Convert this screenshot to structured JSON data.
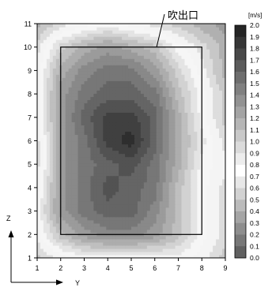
{
  "chart_data": {
    "type": "heatmap",
    "title": "",
    "xlabel": "Y",
    "ylabel": "Z",
    "xlim": [
      1,
      9
    ],
    "ylim": [
      1,
      11
    ],
    "x_ticks": [
      "1",
      "2",
      "3",
      "4",
      "5",
      "6",
      "7",
      "8",
      "9"
    ],
    "y_ticks": [
      "1",
      "2",
      "3",
      "4",
      "5",
      "6",
      "7",
      "8",
      "9",
      "10",
      "11"
    ],
    "x": [
      1,
      2,
      3,
      4,
      5,
      6,
      7,
      8,
      9
    ],
    "y": [
      1,
      2,
      3,
      4,
      5,
      6,
      7,
      8,
      9,
      10,
      11
    ],
    "z": [
      [
        0.5,
        0.7,
        0.8,
        0.8,
        0.8,
        0.8,
        0.8,
        0.7,
        0.5
      ],
      [
        0.7,
        1.1,
        1.3,
        1.4,
        1.4,
        1.3,
        1.1,
        0.8,
        0.6
      ],
      [
        0.8,
        1.3,
        1.5,
        1.6,
        1.6,
        1.4,
        1.1,
        0.8,
        0.6
      ],
      [
        0.7,
        1.3,
        1.5,
        1.7,
        1.6,
        1.5,
        1.1,
        0.8,
        0.6
      ],
      [
        0.6,
        1.3,
        1.5,
        1.6,
        1.7,
        1.5,
        1.2,
        0.8,
        0.7
      ],
      [
        0.6,
        1.3,
        1.5,
        1.8,
        1.9,
        1.6,
        1.2,
        0.9,
        0.6
      ],
      [
        0.7,
        1.3,
        1.6,
        1.8,
        1.8,
        1.6,
        1.2,
        0.8,
        0.5
      ],
      [
        0.7,
        1.3,
        1.5,
        1.6,
        1.6,
        1.5,
        1.1,
        0.8,
        0.5
      ],
      [
        0.7,
        1.2,
        1.4,
        1.5,
        1.5,
        1.3,
        1.0,
        0.7,
        0.4
      ],
      [
        0.6,
        1.0,
        1.2,
        1.3,
        1.2,
        1.1,
        0.8,
        0.6,
        0.4
      ],
      [
        0.4,
        0.6,
        0.7,
        0.8,
        0.7,
        0.6,
        0.5,
        0.4,
        0.3
      ]
    ],
    "colorbar": {
      "unit": "[m/s]",
      "min": 0.0,
      "max": 2.0,
      "step": 0.1,
      "labels": [
        "2.0",
        "1.9",
        "1.8",
        "1.7",
        "1.6",
        "1.5",
        "1.4",
        "1.3",
        "1.2",
        "1.1",
        "1.0",
        "0.9",
        "0.8",
        "0.7",
        "0.6",
        "0.5",
        "0.4",
        "0.3",
        "0.2",
        "0.1",
        "0.0"
      ],
      "color_high": "#1c1c1c",
      "color_mid": "#ffffff",
      "color_low": "#565656"
    },
    "outlet": {
      "label": "吹出口",
      "y_range": [
        2,
        8
      ],
      "z_range": [
        2,
        10
      ]
    },
    "grid": false,
    "legend": "right colorbar"
  }
}
